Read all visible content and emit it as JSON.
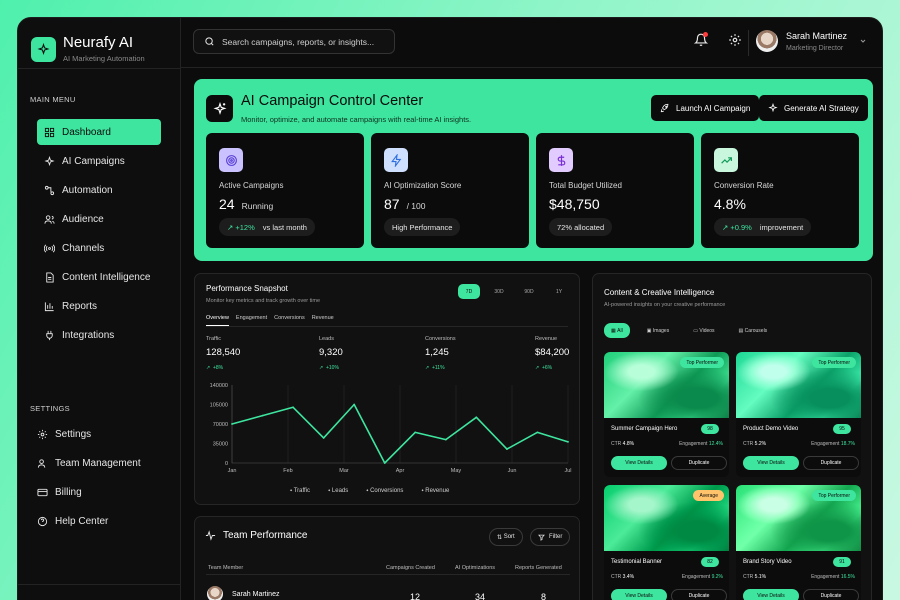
{
  "brand": {
    "name": "Neurafy AI",
    "tagline": "AI Marketing Automation"
  },
  "sidebar": {
    "main_title": "MAIN MENU",
    "main_items": [
      {
        "label": "Dashboard",
        "icon": "grid-icon",
        "active": true
      },
      {
        "label": "AI Campaigns",
        "icon": "sparkle-icon"
      },
      {
        "label": "Automation",
        "icon": "workflow-icon"
      },
      {
        "label": "Audience",
        "icon": "users-icon"
      },
      {
        "label": "Channels",
        "icon": "broadcast-icon"
      },
      {
        "label": "Content Intelligence",
        "icon": "document-icon"
      },
      {
        "label": "Reports",
        "icon": "bar-chart-icon"
      },
      {
        "label": "Integrations",
        "icon": "plug-icon"
      }
    ],
    "settings_title": "SETTINGS",
    "settings_items": [
      {
        "label": "Settings",
        "icon": "gear-icon"
      },
      {
        "label": "Team Management",
        "icon": "team-icon"
      },
      {
        "label": "Billing",
        "icon": "credit-card-icon"
      },
      {
        "label": "Help Center",
        "icon": "help-icon"
      }
    ]
  },
  "topbar": {
    "search_placeholder": "Search campaigns, reports, or insights...",
    "user": {
      "name": "Sarah Martinez",
      "role": "Marketing Director"
    }
  },
  "hero": {
    "title": "AI Campaign Control Center",
    "subtitle": "Monitor, optimize, and automate campaigns with real-time AI insights.",
    "buttons": {
      "launch": "Launch AI Campaign",
      "generate": "Generate AI Strategy"
    },
    "kpis": [
      {
        "label": "Active Campaigns",
        "value": "24",
        "unit": "Running",
        "chip_delta": "+12%",
        "chip_text": "vs last month",
        "icon": "target-icon",
        "icon_bg": "#c9c2ff"
      },
      {
        "label": "AI Optimization Score",
        "value": "87",
        "unit": "/ 100",
        "chip_delta": "",
        "chip_text": "High Performance",
        "icon": "lightning-icon",
        "icon_bg": "#cfe0ff"
      },
      {
        "label": "Total Budget Utilized",
        "value": "$48,750",
        "unit": "",
        "chip_delta": "",
        "chip_text": "72% allocated",
        "icon": "dollar-icon",
        "icon_bg": "#e2ccff"
      },
      {
        "label": "Conversion Rate",
        "value": "4.8%",
        "unit": "",
        "chip_delta": "+0.9%",
        "chip_text": "improvement",
        "icon": "trend-up-icon",
        "icon_bg": "#c8f7dd"
      }
    ]
  },
  "performance": {
    "title": "Performance Snapshot",
    "subtitle": "Monitor key metrics and track growth over time",
    "ranges": [
      "7D",
      "30D",
      "90D",
      "1Y"
    ],
    "tabs": [
      "Overview",
      "Engagement",
      "Conversions",
      "Revenue"
    ],
    "metrics": [
      {
        "label": "Traffic",
        "value": "128,540",
        "change": "+8%"
      },
      {
        "label": "Leads",
        "value": "9,320",
        "change": "+10%"
      },
      {
        "label": "Conversions",
        "value": "1,245",
        "change": "+11%"
      },
      {
        "label": "Revenue",
        "value": "$84,200",
        "change": "+6%"
      }
    ],
    "legend": [
      "Traffic",
      "Leads",
      "Conversions",
      "Revenue"
    ]
  },
  "chart_data": {
    "type": "line",
    "x": [
      "Jan",
      "Jan",
      "Feb",
      "Mar",
      "Mar",
      "Apr",
      "Apr",
      "May",
      "May",
      "Jun",
      "Jul",
      "Jul"
    ],
    "x_tick_labels": [
      "Jan",
      "Feb",
      "Mar",
      "Apr",
      "May",
      "Jun",
      "Jul"
    ],
    "y_tick_labels": [
      "140000",
      "105000",
      "70000",
      "35000",
      "0"
    ],
    "series": [
      {
        "values": [
          70000,
          85000,
          100000,
          45000,
          105000,
          0,
          55000,
          42000,
          82000,
          25000,
          55000,
          38000
        ]
      }
    ],
    "ylim": [
      0,
      140000
    ],
    "color": "#3ee59f",
    "grid": "vertical"
  },
  "content": {
    "title": "Content & Creative Intelligence",
    "subtitle": "AI-powered insights on your creative performance",
    "filters": [
      "All",
      "Images",
      "Videos",
      "Carousels"
    ],
    "cards": [
      {
        "name": "Summer Campaign Hero",
        "badge": "Top Performer",
        "score": "98",
        "ctr": "4.8%",
        "engagement": "12.4%"
      },
      {
        "name": "Product Demo Video",
        "badge": "Top Performer",
        "score": "95",
        "ctr": "5.2%",
        "engagement": "18.7%"
      },
      {
        "name": "Testimonial Banner",
        "badge": "Average",
        "score": "82",
        "ctr": "3.4%",
        "engagement": "9.2%"
      },
      {
        "name": "Brand Story Video",
        "badge": "Top Performer",
        "score": "91",
        "ctr": "5.1%",
        "engagement": "16.5%"
      }
    ],
    "ctr_label": "CTR",
    "engagement_label": "Engagement",
    "view_label": "View Details",
    "duplicate_label": "Duplicate"
  },
  "team": {
    "title": "Team Performance",
    "sort_label": "Sort",
    "filter_label": "Filter",
    "columns": [
      "Team Member",
      "Campaigns Created",
      "AI Optimizations",
      "Reports Generated"
    ],
    "rows": [
      {
        "member": "Sarah Martinez",
        "campaigns": "12",
        "optimizations": "34",
        "reports": "8"
      }
    ]
  }
}
